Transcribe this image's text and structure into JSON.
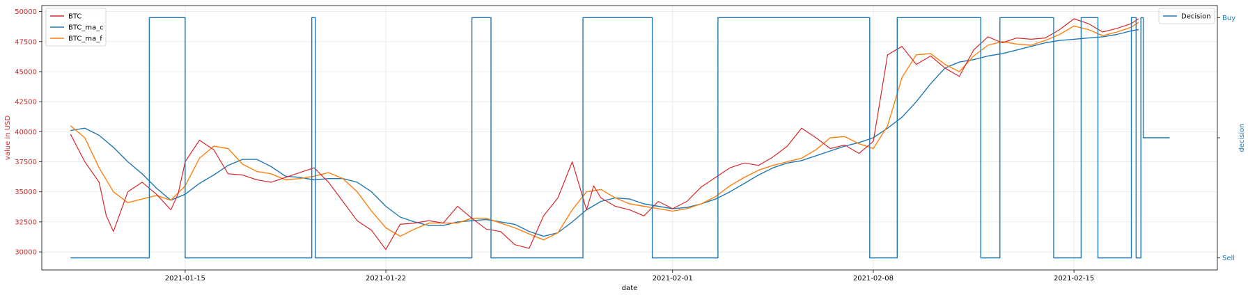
{
  "chart_data": {
    "type": "line",
    "xlabel": "date",
    "ylabel_left": "value in USD",
    "ylabel_right": "decision",
    "x_range": [
      "2021-01-10T00:00",
      "2021-02-20T00:00"
    ],
    "x_ticks": [
      "2021-01-15",
      "2021-01-22",
      "2021-02-01",
      "2021-02-08",
      "2021-02-15"
    ],
    "y_left_range": [
      28500,
      50500
    ],
    "y_left_ticks": [
      "30000",
      "32500",
      "35000",
      "37500",
      "40000",
      "42500",
      "45000",
      "47500",
      "50000"
    ],
    "y_right_range": [
      -1.1,
      1.1
    ],
    "y_right_tick_labels": [
      "Sell",
      "Buy"
    ],
    "grid": true,
    "colors": {
      "BTC": "#d62728",
      "BTC_ma_c": "#1f77b4",
      "BTC_ma_f": "#ff7f0e",
      "Decision": "#1f77b4",
      "left_axis": "#d62728",
      "right_axis": "#1f77b4"
    },
    "legend_left": {
      "placement": "upper-left",
      "entries": [
        "BTC",
        "BTC_ma_c",
        "BTC_ma_f"
      ]
    },
    "legend_right": {
      "placement": "upper-right",
      "entries": [
        "Decision"
      ]
    },
    "series": [
      {
        "name": "BTC",
        "axis": "left",
        "x": [
          "2021-01-11T00:00",
          "2021-01-11T12:00",
          "2021-01-12T00:00",
          "2021-01-12T06:00",
          "2021-01-12T12:00",
          "2021-01-13T00:00",
          "2021-01-13T12:00",
          "2021-01-14T00:00",
          "2021-01-14T12:00",
          "2021-01-14T18:00",
          "2021-01-15T00:00",
          "2021-01-15T12:00",
          "2021-01-16T00:00",
          "2021-01-16T12:00",
          "2021-01-17T00:00",
          "2021-01-17T12:00",
          "2021-01-18T00:00",
          "2021-01-18T12:00",
          "2021-01-19T00:00",
          "2021-01-19T12:00",
          "2021-01-20T00:00",
          "2021-01-20T12:00",
          "2021-01-21T00:00",
          "2021-01-21T12:00",
          "2021-01-22T00:00",
          "2021-01-22T12:00",
          "2021-01-23T00:00",
          "2021-01-23T12:00",
          "2021-01-24T00:00",
          "2021-01-24T12:00",
          "2021-01-25T00:00",
          "2021-01-25T12:00",
          "2021-01-26T00:00",
          "2021-01-26T12:00",
          "2021-01-27T00:00",
          "2021-01-27T12:00",
          "2021-01-28T00:00",
          "2021-01-28T12:00",
          "2021-01-29T00:00",
          "2021-01-29T06:00",
          "2021-01-29T12:00",
          "2021-01-30T00:00",
          "2021-01-30T12:00",
          "2021-01-31T00:00",
          "2021-01-31T12:00",
          "2021-02-01T00:00",
          "2021-02-01T12:00",
          "2021-02-02T00:00",
          "2021-02-02T12:00",
          "2021-02-03T00:00",
          "2021-02-03T12:00",
          "2021-02-04T00:00",
          "2021-02-04T12:00",
          "2021-02-05T00:00",
          "2021-02-05T12:00",
          "2021-02-06T00:00",
          "2021-02-06T12:00",
          "2021-02-07T00:00",
          "2021-02-07T12:00",
          "2021-02-08T00:00",
          "2021-02-08T12:00",
          "2021-02-09T00:00",
          "2021-02-09T12:00",
          "2021-02-10T00:00",
          "2021-02-10T12:00",
          "2021-02-11T00:00",
          "2021-02-11T12:00",
          "2021-02-12T00:00",
          "2021-02-12T12:00",
          "2021-02-13T00:00",
          "2021-02-13T12:00",
          "2021-02-14T00:00",
          "2021-02-14T12:00",
          "2021-02-15T00:00",
          "2021-02-15T12:00",
          "2021-02-16T00:00",
          "2021-02-16T12:00",
          "2021-02-17T00:00",
          "2021-02-17T06:00"
        ],
        "values": [
          39800,
          37500,
          35800,
          33000,
          31700,
          35000,
          35800,
          34800,
          33500,
          34800,
          37500,
          39300,
          38500,
          36500,
          36400,
          36000,
          35800,
          36200,
          36600,
          37000,
          35800,
          34200,
          32600,
          31800,
          30200,
          32300,
          32400,
          32600,
          32400,
          33800,
          32800,
          31900,
          31700,
          30600,
          30300,
          33000,
          34500,
          37500,
          33500,
          35500,
          34500,
          33800,
          33500,
          33000,
          34200,
          33600,
          34200,
          35400,
          36200,
          37000,
          37400,
          37200,
          37900,
          38800,
          40300,
          39500,
          38600,
          38900,
          38200,
          39200,
          46400,
          47100,
          45600,
          46300,
          45300,
          44600,
          46800,
          47900,
          47400,
          47800,
          47700,
          47800,
          48500,
          49400,
          49000,
          48300,
          48600,
          49000,
          49400
        ]
      },
      {
        "name": "BTC_ma_c",
        "axis": "left",
        "x": [
          "2021-01-11T00:00",
          "2021-01-11T12:00",
          "2021-01-12T00:00",
          "2021-01-12T12:00",
          "2021-01-13T00:00",
          "2021-01-13T12:00",
          "2021-01-14T00:00",
          "2021-01-14T12:00",
          "2021-01-15T00:00",
          "2021-01-15T12:00",
          "2021-01-16T00:00",
          "2021-01-16T12:00",
          "2021-01-17T00:00",
          "2021-01-17T12:00",
          "2021-01-18T00:00",
          "2021-01-18T12:00",
          "2021-01-19T00:00",
          "2021-01-19T12:00",
          "2021-01-20T00:00",
          "2021-01-20T12:00",
          "2021-01-21T00:00",
          "2021-01-21T12:00",
          "2021-01-22T00:00",
          "2021-01-22T12:00",
          "2021-01-23T00:00",
          "2021-01-23T12:00",
          "2021-01-24T00:00",
          "2021-01-24T12:00",
          "2021-01-25T00:00",
          "2021-01-25T12:00",
          "2021-01-26T00:00",
          "2021-01-26T12:00",
          "2021-01-27T00:00",
          "2021-01-27T12:00",
          "2021-01-28T00:00",
          "2021-01-28T12:00",
          "2021-01-29T00:00",
          "2021-01-29T12:00",
          "2021-01-30T00:00",
          "2021-01-30T12:00",
          "2021-01-31T00:00",
          "2021-01-31T12:00",
          "2021-02-01T00:00",
          "2021-02-01T12:00",
          "2021-02-02T00:00",
          "2021-02-02T12:00",
          "2021-02-03T00:00",
          "2021-02-03T12:00",
          "2021-02-04T00:00",
          "2021-02-04T12:00",
          "2021-02-05T00:00",
          "2021-02-05T12:00",
          "2021-02-06T00:00",
          "2021-02-06T12:00",
          "2021-02-07T00:00",
          "2021-02-07T12:00",
          "2021-02-08T00:00",
          "2021-02-08T12:00",
          "2021-02-09T00:00",
          "2021-02-09T12:00",
          "2021-02-10T00:00",
          "2021-02-10T12:00",
          "2021-02-11T00:00",
          "2021-02-11T12:00",
          "2021-02-12T00:00",
          "2021-02-12T12:00",
          "2021-02-13T00:00",
          "2021-02-13T12:00",
          "2021-02-14T00:00",
          "2021-02-14T12:00",
          "2021-02-15T00:00",
          "2021-02-15T12:00",
          "2021-02-16T00:00",
          "2021-02-16T12:00",
          "2021-02-17T00:00",
          "2021-02-17T06:00"
        ],
        "values": [
          40100,
          40300,
          39700,
          38700,
          37500,
          36500,
          35300,
          34300,
          34800,
          35700,
          36400,
          37200,
          37700,
          37700,
          37100,
          36300,
          36200,
          36000,
          36100,
          36100,
          35800,
          35000,
          33800,
          32900,
          32500,
          32200,
          32200,
          32500,
          32600,
          32700,
          32500,
          32300,
          31700,
          31300,
          31600,
          32500,
          33500,
          34200,
          34500,
          34400,
          34000,
          33800,
          33600,
          33700,
          34000,
          34400,
          35000,
          35700,
          36400,
          37000,
          37400,
          37600,
          38000,
          38400,
          38800,
          39100,
          39500,
          40300,
          41200,
          42500,
          44000,
          45300,
          45800,
          46000,
          46300,
          46500,
          46800,
          47100,
          47400,
          47600,
          47700,
          47800,
          47900,
          48100,
          48400,
          48500
        ]
      },
      {
        "name": "BTC_ma_f",
        "axis": "left",
        "x": [
          "2021-01-11T00:00",
          "2021-01-11T12:00",
          "2021-01-12T00:00",
          "2021-01-12T12:00",
          "2021-01-13T00:00",
          "2021-01-13T12:00",
          "2021-01-14T00:00",
          "2021-01-14T12:00",
          "2021-01-15T00:00",
          "2021-01-15T12:00",
          "2021-01-16T00:00",
          "2021-01-16T12:00",
          "2021-01-17T00:00",
          "2021-01-17T12:00",
          "2021-01-18T00:00",
          "2021-01-18T12:00",
          "2021-01-19T00:00",
          "2021-01-19T12:00",
          "2021-01-20T00:00",
          "2021-01-20T12:00",
          "2021-01-21T00:00",
          "2021-01-21T12:00",
          "2021-01-22T00:00",
          "2021-01-22T12:00",
          "2021-01-23T00:00",
          "2021-01-23T12:00",
          "2021-01-24T00:00",
          "2021-01-24T12:00",
          "2021-01-25T00:00",
          "2021-01-25T12:00",
          "2021-01-26T00:00",
          "2021-01-26T12:00",
          "2021-01-27T00:00",
          "2021-01-27T12:00",
          "2021-01-28T00:00",
          "2021-01-28T12:00",
          "2021-01-29T00:00",
          "2021-01-29T12:00",
          "2021-01-30T00:00",
          "2021-01-30T12:00",
          "2021-01-31T00:00",
          "2021-01-31T12:00",
          "2021-02-01T00:00",
          "2021-02-01T12:00",
          "2021-02-02T00:00",
          "2021-02-02T12:00",
          "2021-02-03T00:00",
          "2021-02-03T12:00",
          "2021-02-04T00:00",
          "2021-02-04T12:00",
          "2021-02-05T00:00",
          "2021-02-05T12:00",
          "2021-02-06T00:00",
          "2021-02-06T12:00",
          "2021-02-07T00:00",
          "2021-02-07T12:00",
          "2021-02-08T00:00",
          "2021-02-08T12:00",
          "2021-02-09T00:00",
          "2021-02-09T12:00",
          "2021-02-10T00:00",
          "2021-02-10T12:00",
          "2021-02-11T00:00",
          "2021-02-11T12:00",
          "2021-02-12T00:00",
          "2021-02-12T12:00",
          "2021-02-13T00:00",
          "2021-02-13T12:00",
          "2021-02-14T00:00",
          "2021-02-14T12:00",
          "2021-02-15T00:00",
          "2021-02-15T12:00",
          "2021-02-16T00:00",
          "2021-02-16T12:00",
          "2021-02-17T00:00",
          "2021-02-17T06:00"
        ],
        "values": [
          40500,
          39500,
          37000,
          35000,
          34100,
          34400,
          34700,
          34300,
          35500,
          37800,
          38800,
          38600,
          37300,
          36700,
          36500,
          36000,
          36100,
          36300,
          36600,
          36100,
          35000,
          33400,
          32000,
          31300,
          31900,
          32400,
          32400,
          32400,
          32800,
          32800,
          32400,
          32000,
          31500,
          31000,
          31600,
          33500,
          35000,
          35200,
          34500,
          34000,
          33800,
          33600,
          33400,
          33600,
          34000,
          34600,
          35500,
          36200,
          36800,
          37200,
          37500,
          37800,
          38500,
          39500,
          39600,
          39000,
          38600,
          40500,
          44500,
          46400,
          46500,
          45600,
          45000,
          46300,
          47200,
          47500,
          47300,
          47200,
          47600,
          48100,
          48800,
          48500,
          48000,
          48300,
          48700,
          49100
        ]
      },
      {
        "name": "Decision",
        "axis": "right",
        "x": [
          "2021-01-11T00:00",
          "2021-01-13T18:00",
          "2021-01-13T18:00",
          "2021-01-15T00:00",
          "2021-01-15T00:00",
          "2021-01-19T10:00",
          "2021-01-19T10:00",
          "2021-01-19T13:00",
          "2021-01-19T13:00",
          "2021-01-25T00:00",
          "2021-01-25T00:00",
          "2021-01-25T16:00",
          "2021-01-25T16:00",
          "2021-01-28T21:00",
          "2021-01-28T21:00",
          "2021-01-31T07:00",
          "2021-01-31T07:00",
          "2021-02-02T14:00",
          "2021-02-02T14:00",
          "2021-02-07T21:00",
          "2021-02-07T21:00",
          "2021-02-08T20:00",
          "2021-02-08T20:00",
          "2021-02-11T18:00",
          "2021-02-11T18:00",
          "2021-02-12T10:00",
          "2021-02-12T10:00",
          "2021-02-14T07:00",
          "2021-02-14T07:00",
          "2021-02-15T06:00",
          "2021-02-15T06:00",
          "2021-02-15T20:00",
          "2021-02-15T20:00",
          "2021-02-17T00:00",
          "2021-02-17T00:00",
          "2021-02-17T04:00",
          "2021-02-17T04:00",
          "2021-02-17T08:00",
          "2021-02-17T08:00",
          "2021-02-17T10:00",
          "2021-02-17T10:00",
          "2021-02-18T08:00"
        ],
        "values": [
          -1,
          -1,
          1,
          1,
          -1,
          -1,
          1,
          1,
          -1,
          -1,
          1,
          1,
          -1,
          -1,
          1,
          1,
          -1,
          -1,
          1,
          1,
          -1,
          -1,
          1,
          1,
          -1,
          -1,
          1,
          1,
          -1,
          -1,
          1,
          1,
          -1,
          -1,
          1,
          1,
          -1,
          -1,
          1,
          1,
          0,
          0
        ]
      }
    ]
  }
}
